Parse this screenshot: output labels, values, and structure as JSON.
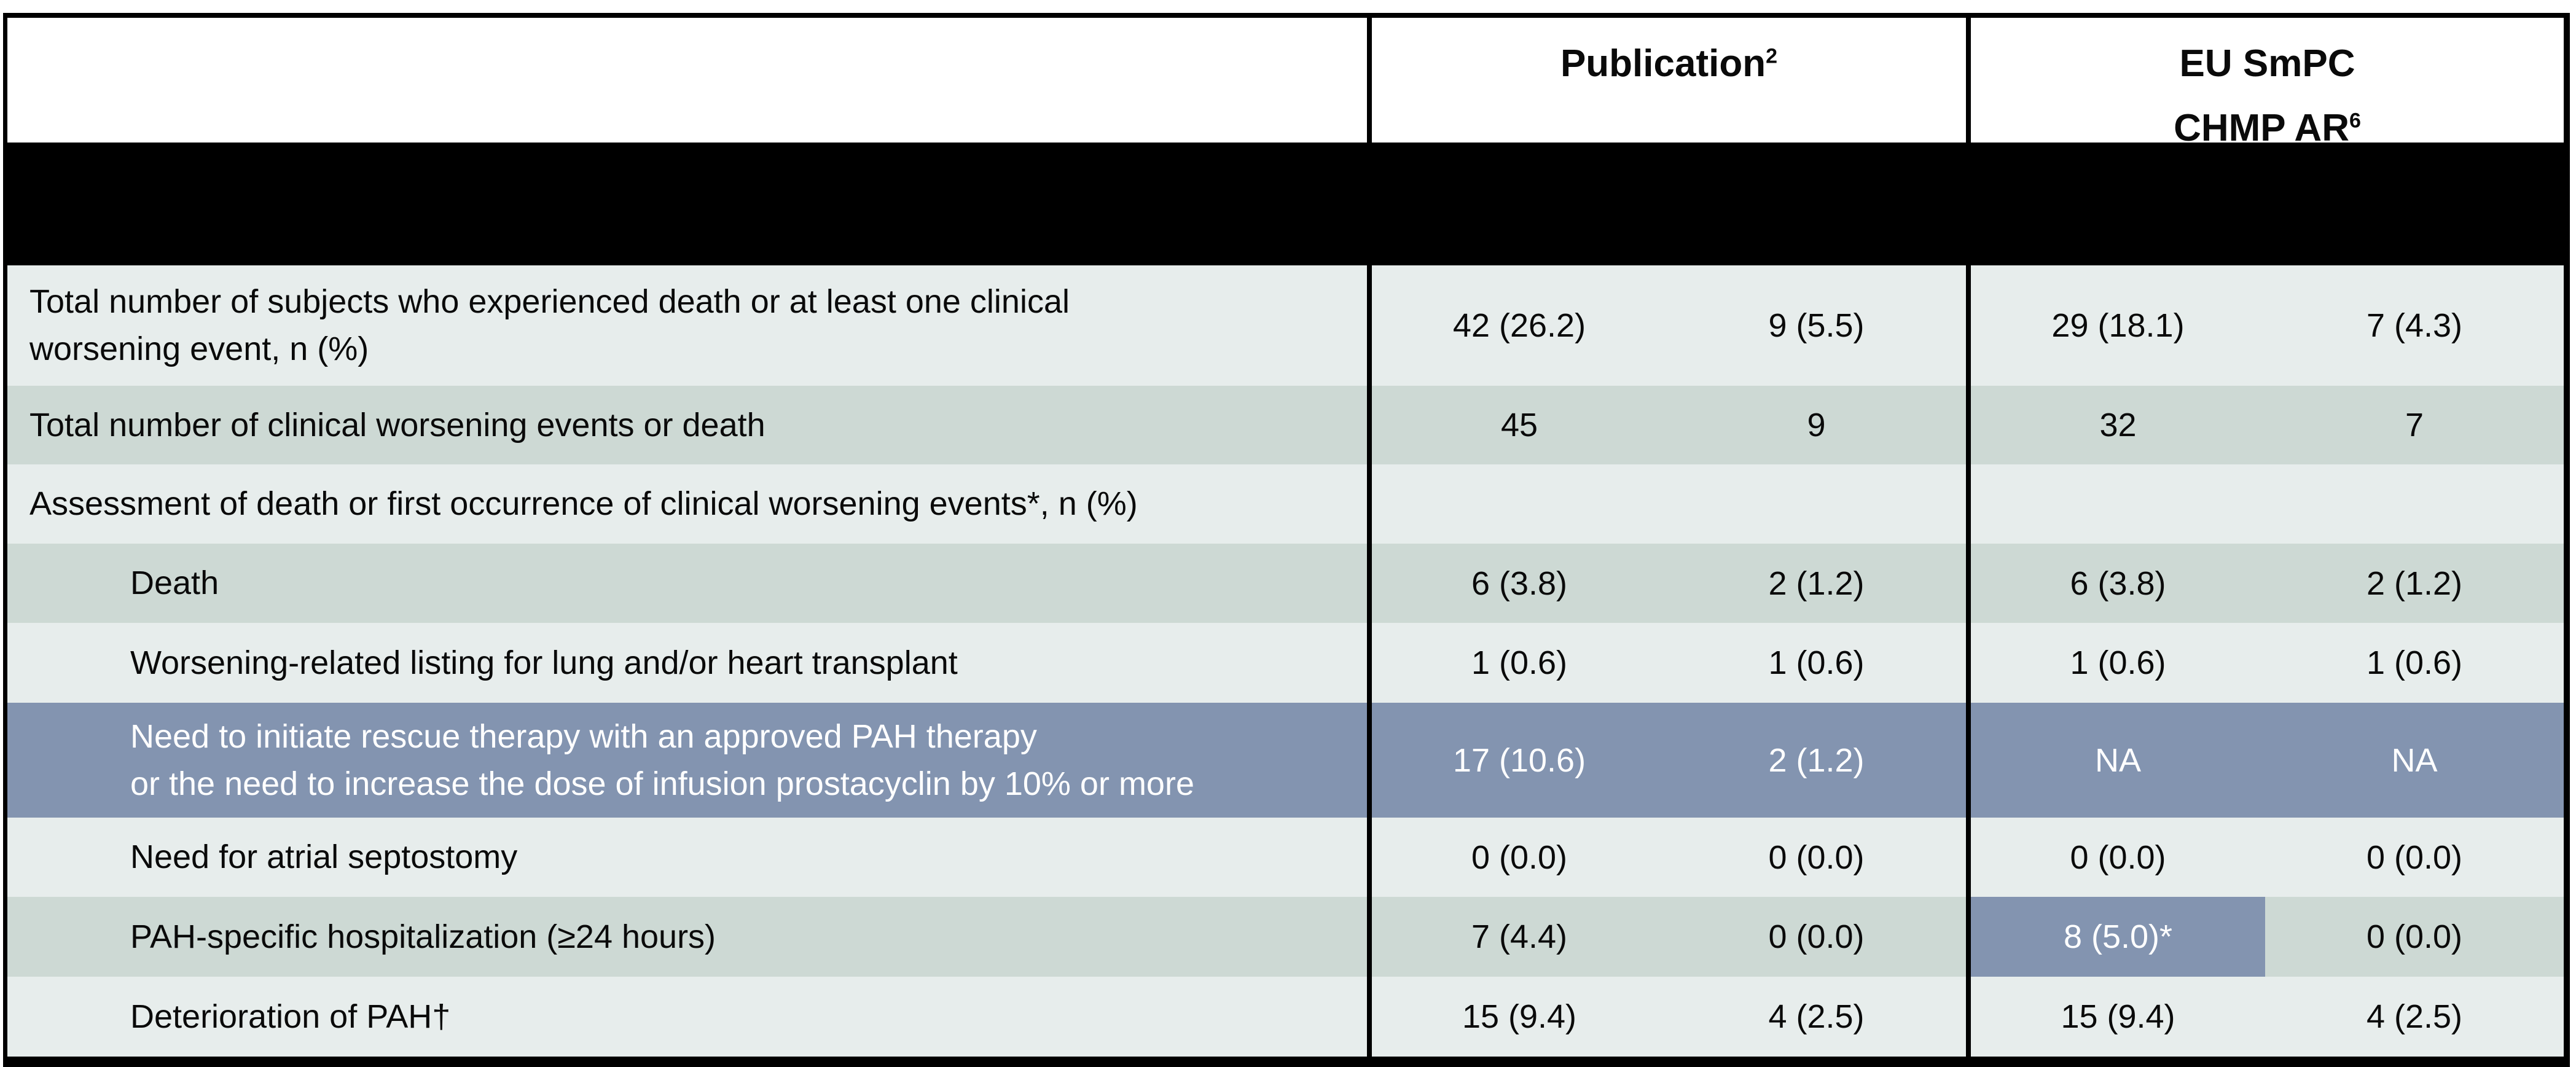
{
  "table": {
    "header": {
      "publication": {
        "text": "Publication",
        "sup": "2"
      },
      "eu": {
        "line1": "EU SmPC",
        "line2": "CHMP AR",
        "sup": "6"
      }
    },
    "rows": [
      {
        "label": "Total number of subjects who experienced death or at least one clinical",
        "label2": "worsening event, n (%)",
        "indent": false,
        "shade": "light",
        "values": [
          "42 (26.2)",
          "9 (5.5)",
          "29 (18.1)",
          "7 (4.3)"
        ]
      },
      {
        "label": "Total number of clinical worsening events or death",
        "indent": false,
        "shade": "dark",
        "values": [
          "45",
          "9",
          "32",
          "7"
        ]
      },
      {
        "label": "Assessment of death or first occurrence of clinical worsening events*, n (%)",
        "indent": false,
        "shade": "light",
        "values": [
          "",
          "",
          "",
          ""
        ]
      },
      {
        "label": "Death",
        "indent": true,
        "shade": "dark",
        "values": [
          "6 (3.8)",
          "2 (1.2)",
          "6 (3.8)",
          "2 (1.2)"
        ]
      },
      {
        "label": "Worsening-related listing for lung and/or heart transplant",
        "indent": true,
        "shade": "light",
        "values": [
          "1 (0.6)",
          "1 (0.6)",
          "1 (0.6)",
          "1 (0.6)"
        ]
      },
      {
        "label": "Need to initiate rescue therapy with an approved PAH therapy",
        "label2": "or the need to increase the dose of infusion prostacyclin by 10% or more",
        "indent": true,
        "shade": "highlight",
        "values": [
          "17 (10.6)",
          "2 (1.2)",
          "NA",
          "NA"
        ]
      },
      {
        "label": "Need for atrial septostomy",
        "indent": true,
        "shade": "light",
        "values": [
          "0 (0.0)",
          "0 (0.0)",
          "0 (0.0)",
          "0 (0.0)"
        ]
      },
      {
        "label": "PAH-specific hospitalization (≥24 hours)",
        "indent": true,
        "shade": "dark",
        "values": [
          "7 (4.4)",
          "0 (0.0)",
          "8 (5.0)*",
          "0 (0.0)"
        ],
        "highlight_cells": [
          2
        ]
      },
      {
        "label": "Deterioration of PAH†",
        "indent": true,
        "shade": "light",
        "values": [
          "15 (9.4)",
          "4 (2.5)",
          "15 (9.4)",
          "4 (2.5)"
        ]
      }
    ]
  },
  "colors": {
    "row_light": "#e7edec",
    "row_dark": "#cdd9d4",
    "highlight_blue": "#8394b0",
    "redaction_black": "#000000",
    "border_black": "#000000"
  }
}
